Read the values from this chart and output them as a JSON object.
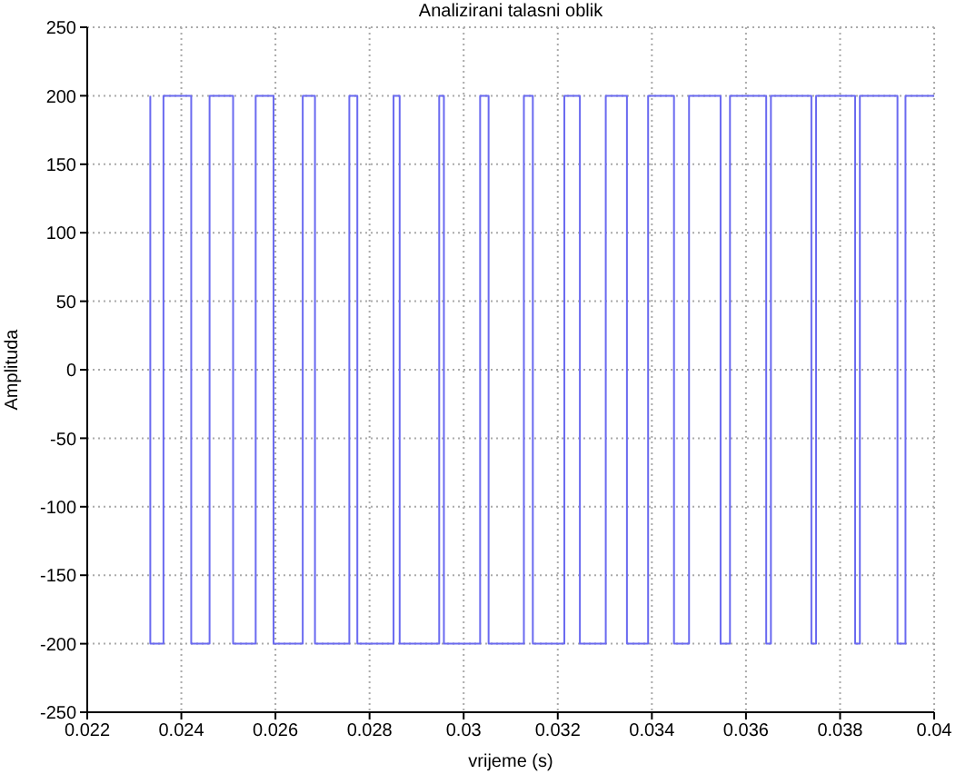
{
  "chart_data": {
    "type": "step",
    "title": "Analizirani talasni oblik",
    "xlabel": "vrijeme (s)",
    "ylabel": "Amplituda",
    "x": [
      0.02334,
      0.02334,
      0.02362,
      0.02421,
      0.0246,
      0.0251,
      0.02558,
      0.02596,
      0.02658,
      0.02684,
      0.02757,
      0.02774,
      0.02851,
      0.02864,
      0.02948,
      0.02958,
      0.03035,
      0.03053,
      0.03128,
      0.03147,
      0.03214,
      0.03247,
      0.03302,
      0.03347,
      0.03392,
      0.03447,
      0.03479,
      0.03546,
      0.03566,
      0.03643,
      0.03653,
      0.03739,
      0.03749,
      0.03832,
      0.03842,
      0.03922,
      0.03939,
      0.04
    ],
    "series": [
      {
        "color": "#6a6af0",
        "values": [
          200,
          -200,
          200,
          -200,
          200,
          -200,
          200,
          -200,
          200,
          -200,
          200,
          -200,
          200,
          -200,
          200,
          -200,
          200,
          -200,
          200,
          -200,
          200,
          -200,
          200,
          -200,
          200,
          -200,
          200,
          -200,
          200,
          -200,
          200,
          -200,
          200,
          -200,
          200,
          -200,
          200,
          200
        ]
      }
    ],
    "xlim": [
      0.022,
      0.04
    ],
    "xticks": [
      0.022,
      0.024,
      0.026,
      0.028,
      0.03,
      0.032,
      0.034,
      0.036,
      0.038,
      0.04
    ],
    "ylim": [
      -250,
      250
    ],
    "yticks": [
      -250,
      -200,
      -150,
      -100,
      -50,
      0,
      50,
      100,
      150,
      200,
      250
    ],
    "grid": true,
    "line_style": "solid",
    "marker": "none"
  }
}
